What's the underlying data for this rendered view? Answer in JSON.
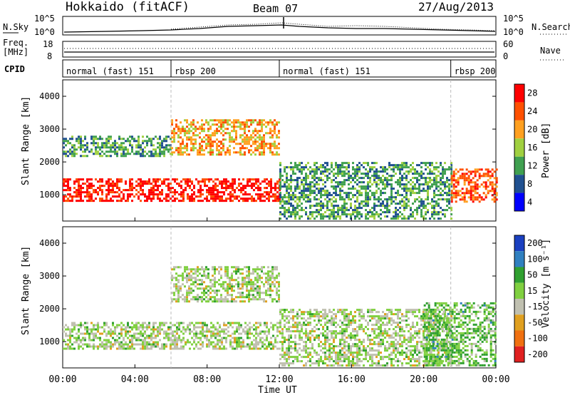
{
  "header": {
    "station": "Hokkaido (fitACF)",
    "beam": "Beam 07",
    "date": "27/Aug/2013"
  },
  "noise_panel": {
    "left_label": "N.Sky",
    "right_label": "N.Search",
    "y_ticks_left": [
      "10^5",
      "10^0"
    ],
    "y_ticks_right": [
      "10^5",
      "10^0"
    ]
  },
  "freq_panel": {
    "left_label_1": "Freq.",
    "left_label_2": "[MHz]",
    "right_label": "Nave",
    "y_ticks_left": [
      "8",
      "18"
    ],
    "y_ticks_right": [
      "60",
      "0"
    ]
  },
  "cpid_panel": {
    "label": "CPID",
    "segments": [
      {
        "text": "normal (fast) 151",
        "start_h": 0,
        "end_h": 6
      },
      {
        "text": "rbsp 200",
        "start_h": 6,
        "end_h": 12
      },
      {
        "text": "normal (fast) 151",
        "start_h": 12,
        "end_h": 21.5
      },
      {
        "text": "rbsp 200",
        "start_h": 21.5,
        "end_h": 24
      }
    ]
  },
  "power_panel": {
    "ylabel": "Slant Range [km]",
    "cbar_label": "Power [dB]",
    "cbar_ticks": [
      "28",
      "24",
      "20",
      "16",
      "12",
      "8",
      "4"
    ],
    "cbar_colors": [
      "#ff0000",
      "#ff5000",
      "#ffa020",
      "#a0d040",
      "#40a050",
      "#205090",
      "#0000ff"
    ],
    "y_ticks": [
      "4000",
      "3000",
      "2000",
      "1000"
    ]
  },
  "velocity_panel": {
    "ylabel": "Slant Range [km]",
    "cbar_label": "Velocity [m s⁻¹]",
    "cbar_ticks": [
      "200",
      "100",
      "50",
      "15",
      "-15",
      "-50",
      "-100",
      "-200"
    ],
    "cbar_colors": [
      "#1a40c0",
      "#3080c0",
      "#30a030",
      "#80d040",
      "#c0c0b0",
      "#e0a020",
      "#f07010",
      "#e02020"
    ],
    "y_ticks": [
      "4000",
      "3000",
      "2000",
      "1000"
    ]
  },
  "x_axis": {
    "xlabel": "Time UT",
    "ticks": [
      "00:00",
      "04:00",
      "08:00",
      "12:00",
      "16:00",
      "20:00",
      "00:00"
    ]
  },
  "chart_data": [
    {
      "type": "line",
      "title": "N.Sky / N.Search",
      "x": [
        0,
        2,
        4,
        6,
        8,
        10,
        12,
        14,
        16,
        18,
        20,
        22,
        24
      ],
      "series": [
        {
          "name": "N.Sky",
          "values": [
            1,
            1.5,
            2,
            3,
            10,
            40,
            60,
            30,
            20,
            15,
            5,
            2,
            1
          ]
        },
        {
          "name": "N.Search",
          "values": [
            1,
            1.5,
            2,
            3,
            8,
            30,
            80,
            40,
            25,
            20,
            6,
            2,
            1
          ]
        }
      ],
      "ylim": [
        1,
        100000
      ]
    },
    {
      "type": "line",
      "title": "Freq. / Nave",
      "x": [
        0,
        4,
        8,
        12,
        16,
        20,
        24
      ],
      "series": [
        {
          "name": "Freq.",
          "values": [
            11,
            11,
            11,
            10.5,
            11,
            11,
            11
          ]
        },
        {
          "name": "Nave",
          "values": [
            30,
            30,
            30,
            30,
            30,
            30,
            30
          ]
        }
      ]
    },
    {
      "type": "heatmap",
      "title": "Power [dB]",
      "x_range_h": [
        0,
        24
      ],
      "ylim": [
        200,
        4500
      ],
      "y_ticks": [
        1000,
        2000,
        3000,
        4000
      ],
      "features": [
        {
          "t_start": 0,
          "t_end": 12,
          "r_start": 800,
          "r_end": 1500,
          "value_db": 28
        },
        {
          "t_start": 0,
          "t_end": 6,
          "r_start": 2200,
          "r_end": 2800,
          "value_db": 12
        },
        {
          "t_start": 6,
          "t_end": 12,
          "r_start": 2200,
          "r_end": 3300,
          "value_db": 20
        },
        {
          "t_start": 12,
          "t_end": 21.5,
          "r_start": 300,
          "r_end": 2000,
          "value_db": 12
        },
        {
          "t_start": 21.5,
          "t_end": 24,
          "r_start": 800,
          "r_end": 1800,
          "value_db": 24
        }
      ]
    },
    {
      "type": "heatmap",
      "title": "Velocity [m s⁻¹]",
      "x_range_h": [
        0,
        24
      ],
      "ylim": [
        200,
        4500
      ],
      "features": [
        {
          "t_start": 0,
          "t_end": 12,
          "r_start": 800,
          "r_end": 1600,
          "value_ms": 0
        },
        {
          "t_start": 6,
          "t_end": 12,
          "r_start": 2200,
          "r_end": 3300,
          "value_ms": 0
        },
        {
          "t_start": 12,
          "t_end": 21.5,
          "r_start": 300,
          "r_end": 2000,
          "value_ms": 0
        },
        {
          "t_start": 20,
          "t_end": 24,
          "r_start": 300,
          "r_end": 2200,
          "value_ms": 50
        }
      ]
    }
  ]
}
